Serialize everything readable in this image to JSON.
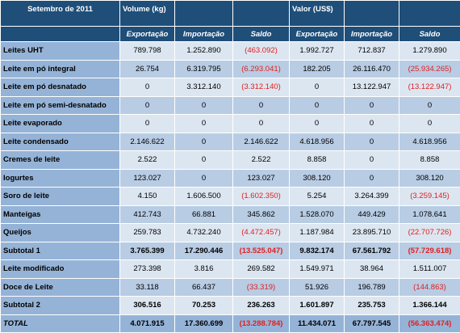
{
  "header": {
    "period": "Setembro de 2011",
    "group_volume": "Volume (kg)",
    "group_value": "Valor (US$)",
    "sub": [
      "Exportação",
      "Importação",
      "Saldo",
      "Exportação",
      "Importação",
      "Saldo"
    ]
  },
  "rows": [
    {
      "label": "Leites UHT",
      "v": [
        "789.798",
        "1.252.890",
        "(463.092)",
        "1.992.727",
        "712.837",
        "1.279.890"
      ]
    },
    {
      "label": "Leite em pó integral",
      "v": [
        "26.754",
        "6.319.795",
        "(6.293.041)",
        "182.205",
        "26.116.470",
        "(25.934.265)"
      ]
    },
    {
      "label": "Leite em pó desnatado",
      "v": [
        "0",
        "3.312.140",
        "(3.312.140)",
        "0",
        "13.122.947",
        "(13.122.947)"
      ]
    },
    {
      "label": "Leite em pó semi-desnatado",
      "v": [
        "0",
        "0",
        "0",
        "0",
        "0",
        "0"
      ]
    },
    {
      "label": "Leite evaporado",
      "v": [
        "0",
        "0",
        "0",
        "0",
        "0",
        "0"
      ]
    },
    {
      "label": "Leite condensado",
      "v": [
        "2.146.622",
        "0",
        "2.146.622",
        "4.618.956",
        "0",
        "4.618.956"
      ]
    },
    {
      "label": "Cremes de leite",
      "v": [
        "2.522",
        "0",
        "2.522",
        "8.858",
        "0",
        "8.858"
      ]
    },
    {
      "label": "Iogurtes",
      "v": [
        "123.027",
        "0",
        "123.027",
        "308.120",
        "0",
        "308.120"
      ]
    },
    {
      "label": "Soro de leite",
      "v": [
        "4.150",
        "1.606.500",
        "(1.602.350)",
        "5.254",
        "3.264.399",
        "(3.259.145)"
      ]
    },
    {
      "label": "Manteigas",
      "v": [
        "412.743",
        "66.881",
        "345.862",
        "1.528.070",
        "449.429",
        "1.078.641"
      ]
    },
    {
      "label": "Queijos",
      "v": [
        "259.783",
        "4.732.240",
        "(4.472.457)",
        "1.187.984",
        "23.895.710",
        "(22.707.726)"
      ]
    },
    {
      "label": "Subtotal 1",
      "v": [
        "3.765.399",
        "17.290.446",
        "(13.525.047)",
        "9.832.174",
        "67.561.792",
        "(57.729.618)"
      ]
    },
    {
      "label": "Leite modificado",
      "v": [
        "273.398",
        "3.816",
        "269.582",
        "1.549.971",
        "38.964",
        "1.511.007"
      ]
    },
    {
      "label": "Doce de Leite",
      "v": [
        "33.118",
        "66.437",
        "(33.319)",
        "51.926",
        "196.789",
        "(144.863)"
      ]
    },
    {
      "label": "Subtotal 2",
      "v": [
        "306.516",
        "70.253",
        "236.263",
        "1.601.897",
        "235.753",
        "1.366.144"
      ]
    },
    {
      "label": "TOTAL",
      "v": [
        "4.071.915",
        "17.360.699",
        "(13.288.784)",
        "11.434.071",
        "67.797.545",
        "(56.363.474)"
      ]
    }
  ]
}
